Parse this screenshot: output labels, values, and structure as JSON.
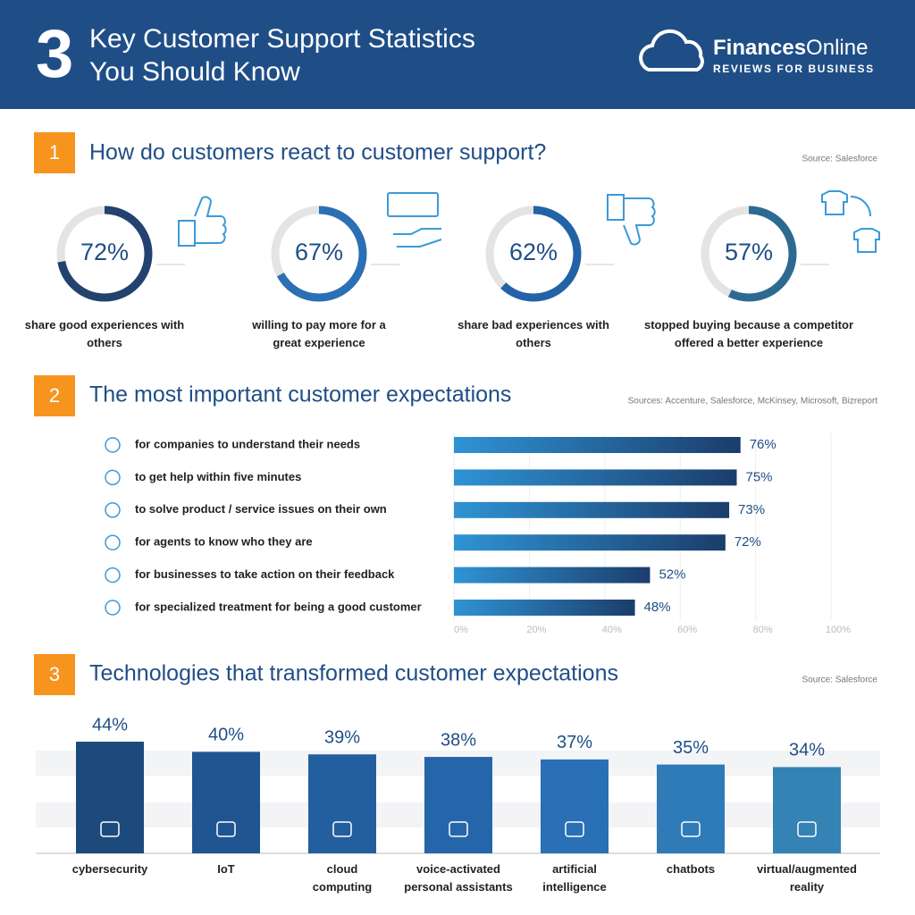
{
  "header": {
    "number": "3",
    "title_line1": "Key Customer Support Statistics",
    "title_line2": "You Should Know",
    "brand_bold": "Finances",
    "brand_rest": "Online",
    "tagline": "REVIEWS FOR BUSINESS"
  },
  "chart_data": [
    {
      "type": "donut",
      "section_number": "1",
      "title": "How do customers react to customer support?",
      "source": "Source: Salesforce",
      "categories": [
        "share good experiences with others",
        "willing to pay more for a great experience",
        "share bad experiences with others",
        "stopped buying because a competitor offered a better experience"
      ],
      "values": [
        72,
        67,
        62,
        57
      ],
      "value_labels": [
        "72%",
        "67%",
        "62%",
        "57%"
      ],
      "ylim": [
        0,
        100
      ],
      "colors": [
        "#24426f",
        "#2b6fb4",
        "#2263a8",
        "#2c6a92"
      ]
    },
    {
      "type": "hbar",
      "section_number": "2",
      "title": "The most important customer expectations",
      "source": "Sources: Accenture, Salesforce, McKinsey, Microsoft, Bizreport",
      "categories": [
        "for companies to understand their needs",
        "to get help within five minutes",
        "to solve product / service issues on their own",
        "for agents to know who they are",
        "for businesses to take action on their feedback",
        "for specialized treatment for being a good customer"
      ],
      "values": [
        76,
        75,
        73,
        72,
        52,
        48
      ],
      "value_labels": [
        "76%",
        "75%",
        "73%",
        "72%",
        "52%",
        "48%"
      ],
      "xlim": [
        0,
        100
      ],
      "xticks": [
        {
          "value": 0,
          "label": "0%"
        },
        {
          "value": 20,
          "label": "20%"
        },
        {
          "value": 40,
          "label": "40%"
        },
        {
          "value": 60,
          "label": "60%"
        },
        {
          "value": 80,
          "label": "80%"
        },
        {
          "value": 100,
          "label": "100%"
        }
      ],
      "grid": true,
      "colors": [
        "#2f93d4",
        "#1b3d6b"
      ]
    },
    {
      "type": "bar",
      "section_number": "3",
      "title": "Technologies that transformed customer expectations",
      "source": "Source: Salesforce",
      "categories": [
        "cybersecurity",
        "IoT",
        "cloud computing",
        "voice-activated personal assistants",
        "artificial intelligence",
        "chatbots",
        "virtual/augmented reality"
      ],
      "values": [
        44,
        40,
        39,
        38,
        37,
        35,
        34
      ],
      "value_labels": [
        "44%",
        "40%",
        "39%",
        "38%",
        "37%",
        "35%",
        "34%"
      ],
      "colors": [
        "#1c4a7c",
        "#1f5591",
        "#235f9f",
        "#2566aa",
        "#2a70b6",
        "#2f7bb8",
        "#3582b4"
      ]
    }
  ]
}
